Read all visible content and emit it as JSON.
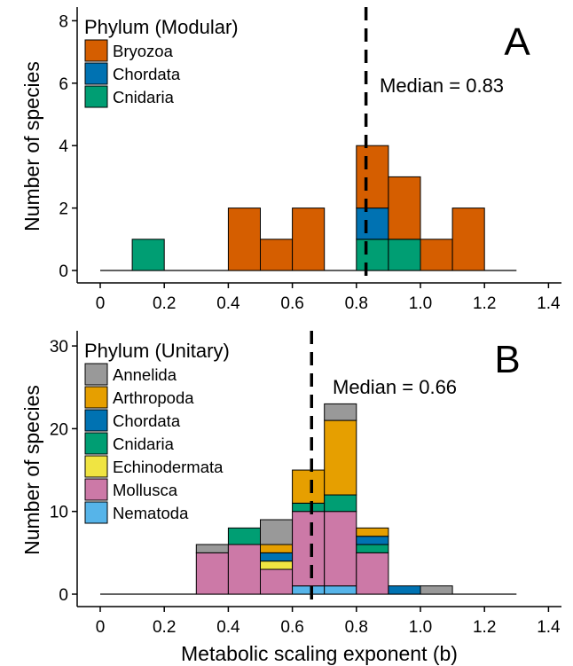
{
  "chart_data": [
    {
      "panel_label": "A",
      "type": "bar",
      "stacked": true,
      "grid": false,
      "xlabel": "",
      "ylabel": "Number of species",
      "xlim": [
        0,
        1.4
      ],
      "ylim": [
        0,
        8
      ],
      "xticks": [
        0,
        0.2,
        0.4,
        0.6,
        0.8,
        1.0,
        1.2,
        1.4
      ],
      "xtick_labels": [
        "0",
        "0.2",
        "0.4",
        "0.6",
        "0.8",
        "1.0",
        "1.2",
        "1.4"
      ],
      "yticks": [
        0,
        2,
        4,
        6,
        8
      ],
      "ytick_labels": [
        "0",
        "2",
        "4",
        "6",
        "8"
      ],
      "bin_width": 0.1,
      "bin_starts": [
        0,
        0.1,
        0.2,
        0.3,
        0.4,
        0.5,
        0.6,
        0.7,
        0.8,
        0.9,
        1.0,
        1.1,
        1.2
      ],
      "legend": {
        "title": "Phylum (Modular)",
        "placement": "top-left"
      },
      "median": {
        "value": 0.83,
        "label": "Median = 0.83",
        "style": "dashed"
      },
      "series": [
        {
          "name": "Bryozoa",
          "color": "#D55E00",
          "values": [
            0,
            0,
            0,
            0,
            2,
            1,
            2,
            0,
            2,
            2,
            1,
            2,
            0
          ]
        },
        {
          "name": "Chordata",
          "color": "#0072B2",
          "values": [
            0,
            0,
            0,
            0,
            0,
            0,
            0,
            0,
            1,
            0,
            0,
            0,
            0
          ]
        },
        {
          "name": "Cnidaria",
          "color": "#009E73",
          "values": [
            0,
            1,
            0,
            0,
            0,
            0,
            0,
            0,
            1,
            1,
            0,
            0,
            0
          ]
        }
      ]
    },
    {
      "panel_label": "B",
      "type": "bar",
      "stacked": true,
      "grid": false,
      "xlabel": "Metabolic scaling exponent (b)",
      "ylabel": "Number of species",
      "xlim": [
        0,
        1.4
      ],
      "ylim": [
        0,
        30
      ],
      "xticks": [
        0,
        0.2,
        0.4,
        0.6,
        0.8,
        1.0,
        1.2,
        1.4
      ],
      "xtick_labels": [
        "0",
        "0.2",
        "0.4",
        "0.6",
        "0.8",
        "1.0",
        "1.2",
        "1.4"
      ],
      "yticks": [
        0,
        10,
        20,
        30
      ],
      "ytick_labels": [
        "0",
        "10",
        "20",
        "30"
      ],
      "bin_width": 0.1,
      "bin_starts": [
        0,
        0.1,
        0.2,
        0.3,
        0.4,
        0.5,
        0.6,
        0.7,
        0.8,
        0.9,
        1.0,
        1.1,
        1.2
      ],
      "legend": {
        "title": "Phylum (Unitary)",
        "placement": "top-left"
      },
      "median": {
        "value": 0.66,
        "label": "Median = 0.66",
        "style": "dashed"
      },
      "series": [
        {
          "name": "Annelida",
          "color": "#999999",
          "values": [
            0,
            0,
            0,
            1,
            0,
            3,
            0,
            2,
            0,
            0,
            1,
            0,
            0
          ]
        },
        {
          "name": "Arthropoda",
          "color": "#E69F00",
          "values": [
            0,
            0,
            0,
            0,
            0,
            1,
            4,
            9,
            1,
            0,
            0,
            0,
            0
          ]
        },
        {
          "name": "Chordata",
          "color": "#0072B2",
          "values": [
            0,
            0,
            0,
            0,
            0,
            1,
            0,
            0,
            1,
            1,
            0,
            0,
            0
          ]
        },
        {
          "name": "Cnidaria",
          "color": "#009E73",
          "values": [
            0,
            0,
            0,
            0,
            2,
            0,
            1,
            2,
            1,
            0,
            0,
            0,
            0
          ]
        },
        {
          "name": "Echinodermata",
          "color": "#F0E442",
          "values": [
            0,
            0,
            0,
            0,
            0,
            1,
            0,
            0,
            0,
            0,
            0,
            0,
            0
          ]
        },
        {
          "name": "Mollusca",
          "color": "#CC79A7",
          "values": [
            0,
            0,
            0,
            5,
            6,
            3,
            9,
            9,
            5,
            0,
            0,
            0,
            0
          ]
        },
        {
          "name": "Nematoda",
          "color": "#56B4E9",
          "values": [
            0,
            0,
            0,
            0,
            0,
            0,
            1,
            1,
            0,
            0,
            0,
            0,
            0
          ]
        }
      ]
    }
  ]
}
